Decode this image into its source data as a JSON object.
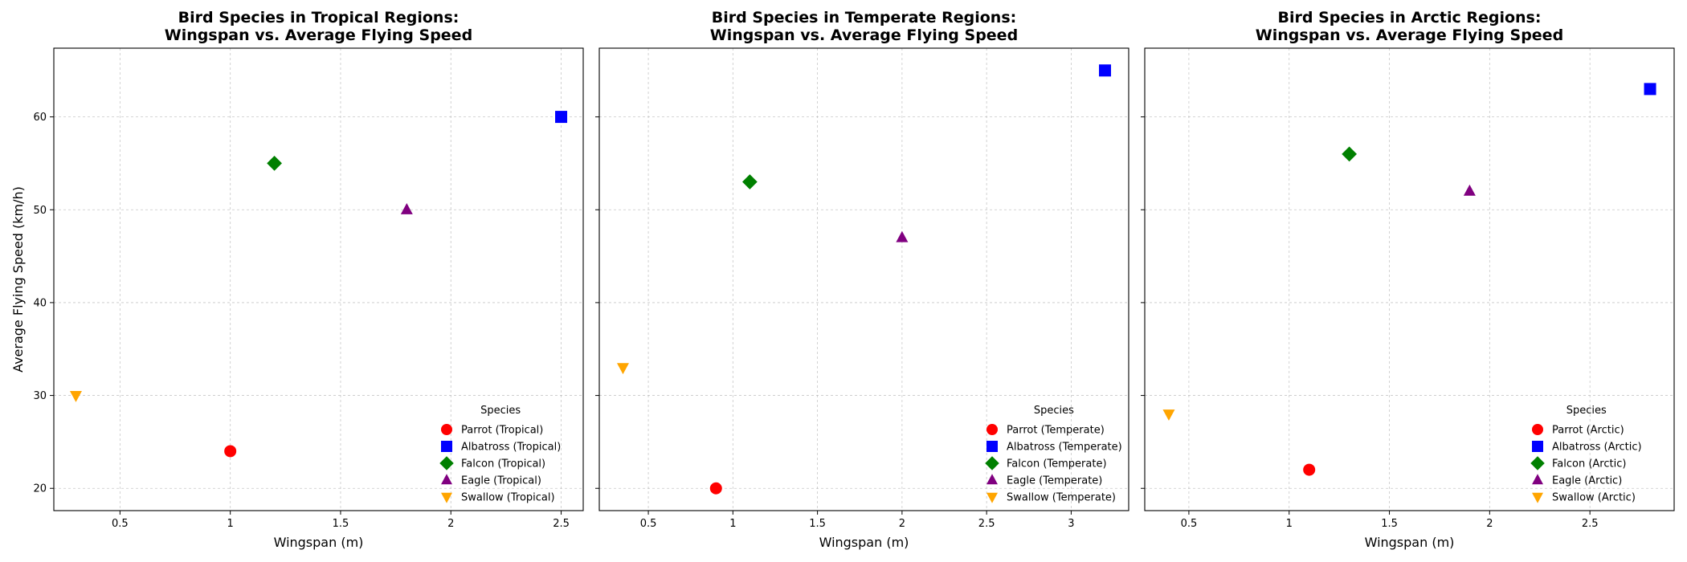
{
  "figure": {
    "shared_ylabel": "Average Flying Speed (km/h)"
  },
  "chart_data": [
    {
      "type": "scatter",
      "title": "Bird Species in Tropical Regions:\nWingspan vs. Average Flying Speed",
      "xlabel": "Wingspan (m)",
      "ylabel": "Average Flying Speed (km/h)",
      "xlim": [
        0.2,
        2.6
      ],
      "ylim": [
        17.6,
        67.4
      ],
      "xticks": [
        0.5,
        1.0,
        1.5,
        2.0,
        2.5
      ],
      "yticks": [
        20,
        30,
        40,
        50,
        60
      ],
      "show_yticklabels": true,
      "grid": true,
      "legend_title": "Species",
      "legend_position": "lower-right",
      "series": [
        {
          "name": "Parrot (Tropical)",
          "color": "#ff0000",
          "marker": "circle",
          "x": 1.0,
          "y": 24
        },
        {
          "name": "Albatross (Tropical)",
          "color": "#0000ff",
          "marker": "square",
          "x": 2.5,
          "y": 60
        },
        {
          "name": "Falcon (Tropical)",
          "color": "#008000",
          "marker": "diamond",
          "x": 1.2,
          "y": 55
        },
        {
          "name": "Eagle (Tropical)",
          "color": "#800080",
          "marker": "triangle-up",
          "x": 1.8,
          "y": 50
        },
        {
          "name": "Swallow (Tropical)",
          "color": "#ffa500",
          "marker": "triangle-down",
          "x": 0.3,
          "y": 30
        }
      ]
    },
    {
      "type": "scatter",
      "title": "Bird Species in Temperate Regions:\nWingspan vs. Average Flying Speed",
      "xlabel": "Wingspan (m)",
      "ylabel": "",
      "xlim": [
        0.21,
        3.34
      ],
      "ylim": [
        17.6,
        67.4
      ],
      "xticks": [
        0.5,
        1.0,
        1.5,
        2.0,
        2.5,
        3.0
      ],
      "yticks": [
        20,
        30,
        40,
        50,
        60
      ],
      "show_yticklabels": false,
      "grid": true,
      "legend_title": "Species",
      "legend_position": "lower-right",
      "series": [
        {
          "name": "Parrot (Temperate)",
          "color": "#ff0000",
          "marker": "circle",
          "x": 0.9,
          "y": 20
        },
        {
          "name": "Albatross (Temperate)",
          "color": "#0000ff",
          "marker": "square",
          "x": 3.2,
          "y": 65
        },
        {
          "name": "Falcon (Temperate)",
          "color": "#008000",
          "marker": "diamond",
          "x": 1.1,
          "y": 53
        },
        {
          "name": "Eagle (Temperate)",
          "color": "#800080",
          "marker": "triangle-up",
          "x": 2.0,
          "y": 47
        },
        {
          "name": "Swallow (Temperate)",
          "color": "#ffa500",
          "marker": "triangle-down",
          "x": 0.35,
          "y": 33
        }
      ]
    },
    {
      "type": "scatter",
      "title": "Bird Species in Arctic Regions:\nWingspan vs. Average Flying Speed",
      "xlabel": "Wingspan (m)",
      "ylabel": "",
      "xlim": [
        0.28,
        2.92
      ],
      "ylim": [
        17.6,
        67.4
      ],
      "xticks": [
        0.5,
        1.0,
        1.5,
        2.0,
        2.5
      ],
      "yticks": [
        20,
        30,
        40,
        50,
        60
      ],
      "show_yticklabels": false,
      "grid": true,
      "legend_title": "Species",
      "legend_position": "lower-right",
      "series": [
        {
          "name": "Parrot (Arctic)",
          "color": "#ff0000",
          "marker": "circle",
          "x": 1.1,
          "y": 22
        },
        {
          "name": "Albatross (Arctic)",
          "color": "#0000ff",
          "marker": "square",
          "x": 2.8,
          "y": 63
        },
        {
          "name": "Falcon (Arctic)",
          "color": "#008000",
          "marker": "diamond",
          "x": 1.3,
          "y": 56
        },
        {
          "name": "Eagle (Arctic)",
          "color": "#800080",
          "marker": "triangle-up",
          "x": 1.9,
          "y": 52
        },
        {
          "name": "Swallow (Arctic)",
          "color": "#ffa500",
          "marker": "triangle-down",
          "x": 0.4,
          "y": 28
        }
      ]
    }
  ]
}
